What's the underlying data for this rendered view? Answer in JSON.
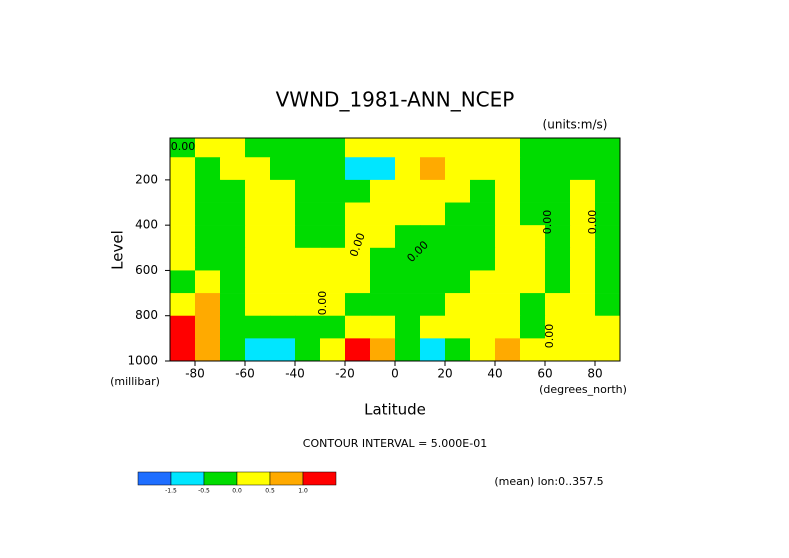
{
  "chart_data": {
    "type": "contour",
    "title": "VWND_1981-ANN_NCEP",
    "subtitle": "(units:m/s)",
    "y_label": "Level",
    "y_unit": "(millibar)",
    "x_label": "Latitude",
    "x_unit": "(degrees_north)",
    "note": "CONTOUR INTERVAL = 5.000E-01",
    "footer": "(mean) lon:0..357.5",
    "x": [
      -85,
      -75,
      -65,
      -55,
      -45,
      -35,
      -25,
      -15,
      -5,
      5,
      15,
      25,
      35,
      45,
      55,
      65,
      75,
      85
    ],
    "y": [
      50,
      150,
      250,
      350,
      450,
      550,
      650,
      750,
      850,
      950
    ],
    "values": [
      [
        -0.1,
        0.2,
        0.2,
        -0.2,
        -0.2,
        -0.2,
        -0.2,
        0.1,
        0.2,
        0.2,
        0.2,
        0.2,
        0.2,
        0.1,
        -0.2,
        -0.2,
        -0.2,
        -0.2
      ],
      [
        0.2,
        -0.2,
        0.2,
        0.2,
        -0.2,
        -0.2,
        -0.3,
        -0.8,
        -0.6,
        0.1,
        0.6,
        0.2,
        0.2,
        0.2,
        -0.2,
        -0.2,
        -0.2,
        -0.2
      ],
      [
        0.2,
        -0.2,
        -0.2,
        0.2,
        0.2,
        -0.2,
        -0.3,
        -0.3,
        0.2,
        0.2,
        0.2,
        0.1,
        -0.1,
        0.2,
        -0.2,
        -0.2,
        0.2,
        -0.2
      ],
      [
        0.2,
        -0.2,
        -0.2,
        0.2,
        0.2,
        -0.2,
        -0.2,
        0.2,
        0.2,
        0.2,
        0.1,
        -0.1,
        -0.2,
        0.2,
        -0.2,
        -0.2,
        0.2,
        -0.2
      ],
      [
        0.2,
        -0.2,
        -0.2,
        0.2,
        0.2,
        -0.2,
        -0.1,
        0.2,
        0.2,
        -0.1,
        -0.2,
        -0.2,
        -0.2,
        0.2,
        0.1,
        -0.2,
        0.2,
        -0.2
      ],
      [
        0.2,
        -0.2,
        -0.2,
        0.2,
        0.2,
        0.1,
        0.2,
        0.2,
        -0.1,
        -0.2,
        -0.2,
        -0.2,
        -0.1,
        0.2,
        0.2,
        -0.2,
        0.2,
        -0.2
      ],
      [
        -0.2,
        0.3,
        -0.2,
        0.2,
        0.2,
        0.2,
        0.2,
        0.1,
        -0.2,
        -0.2,
        -0.2,
        -0.2,
        0.2,
        0.2,
        0.2,
        -0.2,
        0.2,
        -0.2
      ],
      [
        0.3,
        0.7,
        -0.2,
        0.2,
        0.2,
        0.2,
        0.1,
        -0.2,
        -0.2,
        -0.2,
        -0.2,
        0.2,
        0.2,
        0.2,
        -0.1,
        0.2,
        0.2,
        -0.2
      ],
      [
        1.1,
        0.8,
        -0.2,
        -0.1,
        -0.2,
        -0.2,
        -0.2,
        0.2,
        0.2,
        -0.2,
        0.1,
        0.2,
        0.2,
        0.2,
        -0.2,
        0.2,
        0.2,
        0.2
      ],
      [
        1.3,
        0.7,
        -0.1,
        -0.8,
        -0.6,
        -0.2,
        0.3,
        1.2,
        0.8,
        -0.3,
        -0.8,
        -0.2,
        0.2,
        0.6,
        0.2,
        0.2,
        0.2,
        0.2
      ]
    ],
    "xlim": [
      -90,
      90
    ],
    "ylim": [
      1000,
      15
    ],
    "xticks": [
      -80,
      -60,
      -40,
      -20,
      0,
      20,
      40,
      60,
      80
    ],
    "yticks": [
      200,
      400,
      600,
      800,
      1000
    ],
    "colors": [
      "#1e6eff",
      "#00e6ff",
      "#00dc00",
      "#ffff00",
      "#ffaa00",
      "#ff0000"
    ],
    "levels": [
      -1.5,
      -0.5,
      {
        "value": 0,
        "label": "0.0"
      },
      0.5,
      {
        "value": 1,
        "label": "1.0"
      }
    ],
    "contour_labels": [
      "0.00",
      "0.00",
      "0.00",
      "0.00",
      "0.00",
      "0.00",
      "0.00"
    ]
  }
}
